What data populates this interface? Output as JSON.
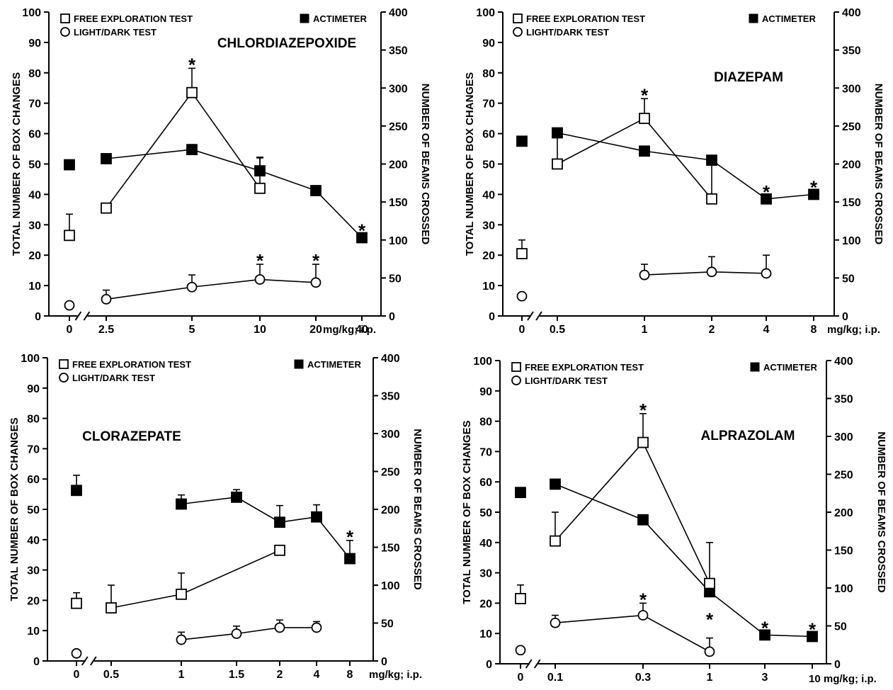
{
  "chart_data": [
    {
      "type": "line",
      "title": "CHLORDIAZEPOXIDE",
      "ylabel": "TOTAL NUMBER OF BOX CHANGES",
      "y2label": "NUMBER OF BEAMS CROSSED",
      "unit": "mg/kg; i.p.",
      "ylim": [
        0,
        100
      ],
      "y_ticks": [
        "0",
        "10",
        "20",
        "30",
        "40",
        "50",
        "60",
        "70",
        "80",
        "90",
        "100"
      ],
      "y2lim": [
        0,
        400
      ],
      "y2_ticks": [
        "0",
        "50",
        "100",
        "150",
        "200",
        "250",
        "300",
        "350",
        "400"
      ],
      "doses": [
        "0",
        "2.5",
        "5",
        "10",
        "20",
        "40"
      ],
      "legend": {
        "free": "FREE EXPLORATION TEST",
        "ld": "LIGHT/DARK TEST",
        "act": "ACTIMETER"
      },
      "series": [
        {
          "name": "FREE EXPLORATION TEST",
          "axis": "left",
          "values": [
            26.5,
            35.5,
            73.5,
            42,
            null,
            null
          ],
          "errors": [
            7,
            0,
            8,
            10,
            null,
            null
          ],
          "signif": [
            false,
            false,
            true,
            false,
            false,
            false
          ]
        },
        {
          "name": "LIGHT/DARK TEST",
          "axis": "left",
          "values": [
            3.5,
            5.5,
            9.5,
            12,
            11,
            null
          ],
          "errors": [
            0,
            3,
            4,
            5,
            6,
            null
          ],
          "signif": [
            false,
            false,
            false,
            true,
            true,
            false
          ]
        },
        {
          "name": "ACTIMETER",
          "axis": "right",
          "values": [
            199,
            207,
            219,
            191,
            165,
            103
          ],
          "errors": [
            0,
            0,
            0,
            18,
            0,
            0
          ],
          "signif": [
            false,
            false,
            false,
            false,
            false,
            true
          ]
        }
      ]
    },
    {
      "type": "line",
      "title": "DIAZEPAM",
      "ylabel": "TOTAL NUMBER OF BOX CHANGES",
      "y2label": "NUMBER OF BEAMS CROSSED",
      "unit": "mg/kg; i.p.",
      "ylim": [
        0,
        100
      ],
      "y_ticks": [
        "0",
        "10",
        "20",
        "30",
        "40",
        "50",
        "60",
        "70",
        "80",
        "90",
        "100"
      ],
      "y2lim": [
        0,
        400
      ],
      "y2_ticks": [
        "0",
        "50",
        "100",
        "150",
        "200",
        "250",
        "300",
        "350",
        "400"
      ],
      "doses": [
        "0",
        "0.5",
        "1",
        "2",
        "4",
        "8"
      ],
      "legend": {
        "free": "FREE EXPLORATION TEST",
        "ld": "LIGHT/DARK TEST",
        "act": "ACTIMETER"
      },
      "series": [
        {
          "name": "FREE EXPLORATION TEST",
          "axis": "left",
          "values": [
            20.5,
            50,
            65,
            38.5,
            null,
            null
          ],
          "errors": [
            4.5,
            10,
            6.5,
            13,
            null,
            null
          ],
          "signif": [
            false,
            false,
            true,
            false,
            false,
            false
          ]
        },
        {
          "name": "LIGHT/DARK TEST",
          "axis": "left",
          "values": [
            6.5,
            null,
            13.5,
            14.5,
            14,
            null
          ],
          "errors": [
            0,
            null,
            3.5,
            5,
            6,
            null
          ],
          "signif": [
            false,
            false,
            false,
            false,
            false,
            false
          ]
        },
        {
          "name": "ACTIMETER",
          "axis": "right",
          "values": [
            230,
            241,
            217,
            205,
            154,
            160
          ],
          "errors": [
            0,
            0,
            0,
            0,
            0,
            0
          ],
          "signif": [
            false,
            false,
            false,
            false,
            true,
            true
          ]
        }
      ]
    },
    {
      "type": "line",
      "title": "CLORAZEPATE",
      "ylabel": "TOTAL NUMBER OF BOX CHANGES",
      "y2label": "NUMBER OF BEAMS CROSSED",
      "unit": "mg/kg; i.p.",
      "ylim": [
        0,
        100
      ],
      "y_ticks": [
        "0",
        "10",
        "20",
        "30",
        "40",
        "50",
        "60",
        "70",
        "80",
        "90",
        "100"
      ],
      "y2lim": [
        0,
        400
      ],
      "y2_ticks": [
        "0",
        "50",
        "100",
        "150",
        "200",
        "250",
        "300",
        "350",
        "400"
      ],
      "doses": [
        "0",
        "0.5",
        "1",
        "1.5",
        "2",
        "4",
        "8"
      ],
      "legend": {
        "free": "FREE EXPLORATION TEST",
        "ld": "LIGHT/DARK TEST",
        "act": "ACTIMETER"
      },
      "series": [
        {
          "name": "FREE EXPLORATION TEST",
          "axis": "left",
          "values": [
            19,
            17.5,
            22,
            null,
            36.5,
            null,
            null
          ],
          "errors": [
            3.5,
            7.5,
            7,
            null,
            0,
            null,
            null
          ],
          "signif": [
            false,
            false,
            false,
            false,
            false,
            false,
            false
          ]
        },
        {
          "name": "LIGHT/DARK TEST",
          "axis": "left",
          "values": [
            2.5,
            null,
            7,
            9,
            11,
            11,
            null
          ],
          "errors": [
            0,
            null,
            2.5,
            2.5,
            2.5,
            2,
            null
          ],
          "signif": [
            false,
            false,
            false,
            false,
            false,
            false,
            false
          ]
        },
        {
          "name": "ACTIMETER",
          "axis": "right",
          "values": [
            225,
            null,
            207,
            216,
            183,
            190,
            135
          ],
          "errors": [
            20,
            null,
            12,
            10,
            22,
            16,
            24
          ],
          "signif": [
            false,
            false,
            false,
            false,
            false,
            false,
            true
          ]
        }
      ]
    },
    {
      "type": "line",
      "title": "ALPRAZOLAM",
      "ylabel": "TOTAL NUMBER OF BOX CHANGES",
      "y2label": "NUMBER OF BEAMS CROSSED",
      "unit": "10 mg/kg; i.p.",
      "ylim": [
        0,
        100
      ],
      "y_ticks": [
        "0",
        "10",
        "20",
        "30",
        "40",
        "50",
        "60",
        "70",
        "80",
        "90",
        "100"
      ],
      "y2lim": [
        0,
        400
      ],
      "y2_ticks": [
        "0",
        "50",
        "100",
        "150",
        "200",
        "250",
        "300",
        "350",
        "400"
      ],
      "doses": [
        "0",
        "0.1",
        "0.3",
        "1",
        "3",
        ""
      ],
      "legend": {
        "free": "FREE EXPLORATION TEST",
        "ld": "LIGHT/DARK TEST",
        "act": "ACTIMETER"
      },
      "series": [
        {
          "name": "FREE EXPLORATION TEST",
          "axis": "left",
          "values": [
            21.5,
            40.5,
            73,
            26.5,
            null,
            null
          ],
          "errors": [
            4.5,
            9.5,
            9.5,
            13.5,
            null,
            null
          ],
          "signif": [
            false,
            false,
            true,
            false,
            false,
            false
          ]
        },
        {
          "name": "LIGHT/DARK TEST",
          "axis": "left",
          "values": [
            4.5,
            13.5,
            16,
            4,
            null,
            null
          ],
          "errors": [
            0,
            2.5,
            4,
            4.5,
            null,
            null
          ],
          "signif": [
            false,
            false,
            true,
            false,
            false,
            false
          ]
        },
        {
          "name": "ACTIMETER",
          "axis": "right",
          "values": [
            226,
            237,
            190,
            95,
            38,
            36
          ],
          "errors": [
            0,
            0,
            0,
            0,
            0,
            0
          ],
          "signif": [
            false,
            false,
            false,
            true,
            true,
            true
          ]
        }
      ]
    }
  ]
}
